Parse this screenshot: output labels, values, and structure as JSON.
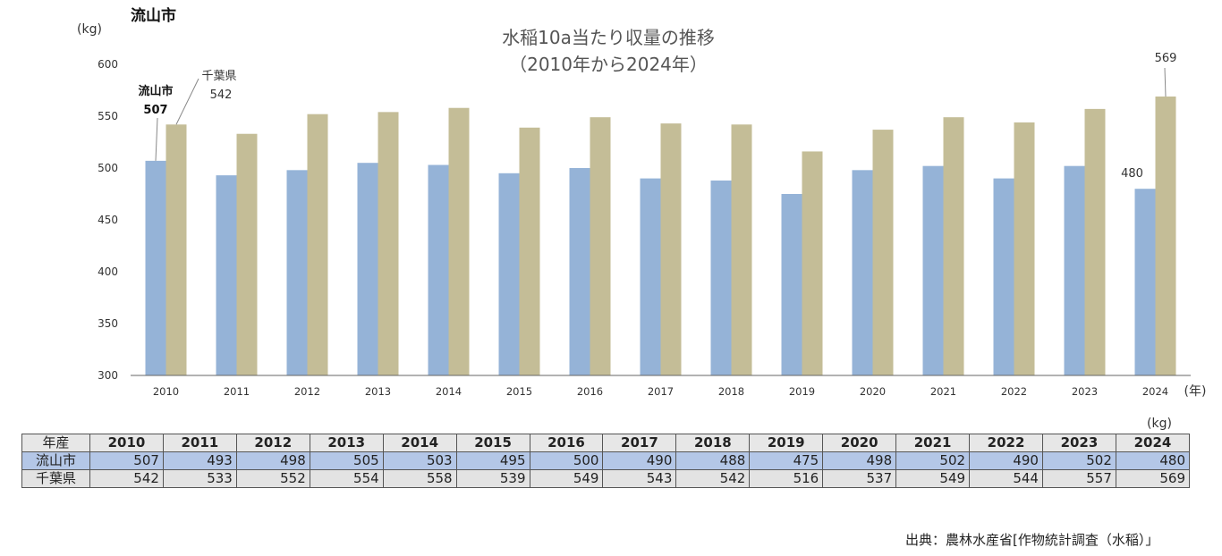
{
  "corner_title": "流山市",
  "source": "出典：農林水産省[作物統計調査（水稲）」",
  "table": {
    "unit": "(kg)",
    "header_label": "年産",
    "rows": [
      {
        "label": "流山市",
        "values": [
          "507",
          "493",
          "498",
          "505",
          "503",
          "495",
          "500",
          "490",
          "488",
          "475",
          "498",
          "502",
          "490",
          "502",
          "480"
        ]
      },
      {
        "label": "千葉県",
        "values": [
          "542",
          "533",
          "552",
          "554",
          "558",
          "539",
          "549",
          "543",
          "542",
          "516",
          "537",
          "549",
          "544",
          "557",
          "569"
        ]
      }
    ]
  },
  "chart_data": {
    "type": "bar",
    "title": [
      "水稲10a当たり収量の推移",
      "（2010年から2024年）"
    ],
    "ylabel": "(kg)",
    "xlabel": "(年)",
    "ylim": [
      300,
      600
    ],
    "yticks": [
      300,
      350,
      400,
      450,
      500,
      550,
      600
    ],
    "categories": [
      "2010",
      "2011",
      "2012",
      "2013",
      "2014",
      "2015",
      "2016",
      "2017",
      "2018",
      "2019",
      "2020",
      "2021",
      "2022",
      "2023",
      "2024"
    ],
    "series": [
      {
        "name": "流山市",
        "color": "#95b3d7",
        "values": [
          507,
          493,
          498,
          505,
          503,
          495,
          500,
          490,
          488,
          475,
          498,
          502,
          490,
          502,
          480
        ]
      },
      {
        "name": "千葉県",
        "color": "#c4bd97",
        "values": [
          542,
          533,
          552,
          554,
          558,
          539,
          549,
          543,
          542,
          516,
          537,
          549,
          544,
          557,
          569
        ]
      }
    ],
    "annotations": [
      {
        "series": 0,
        "index": 0,
        "name": "流山市",
        "value": "507",
        "bold": true
      },
      {
        "series": 1,
        "index": 0,
        "name": "千葉県",
        "value": "542",
        "bold": false
      },
      {
        "series": 0,
        "index": 14,
        "value": "480"
      },
      {
        "series": 1,
        "index": 14,
        "value": "569"
      }
    ],
    "grid": false
  }
}
